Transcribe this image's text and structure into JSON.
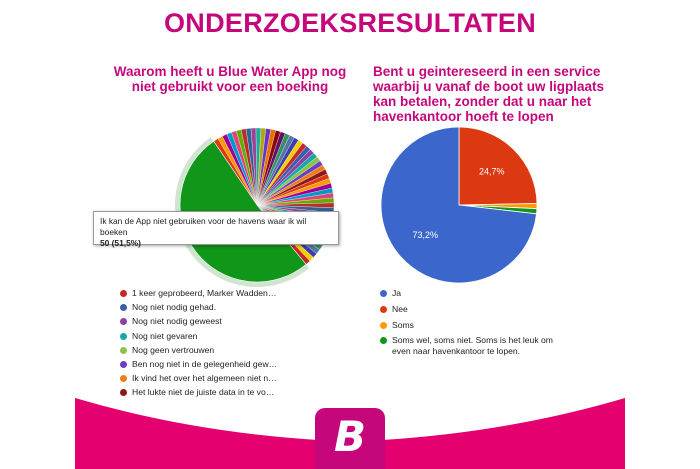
{
  "header": {
    "title": "ONDERZOEKSRESULTATEN"
  },
  "colors": {
    "brand": "#c6077c",
    "footer_pink": "#e4006f"
  },
  "chart_data": [
    {
      "type": "pie",
      "title": "Waarom heeft u Blue Water App nog niet gebruikt voor een boeking",
      "highlight": {
        "label": "Ik kan de App niet gebruiken voor de havens waar ik wil boeken",
        "value_text": "50 (51,5%)",
        "value": 50,
        "percent": 51.5
      },
      "slice_count_other": 47,
      "legend": [
        {
          "label": "1 keer geprobeerd, Marker Wadden…",
          "color": "#c62828"
        },
        {
          "label": "Nog niet nodig gehad.",
          "color": "#3a5fa8"
        },
        {
          "label": "Nog niet nodig geweest",
          "color": "#8e3fa8"
        },
        {
          "label": "Nog niet gevaren",
          "color": "#1aa6a6"
        },
        {
          "label": "Nog geen vertrouwen",
          "color": "#8bc34a"
        },
        {
          "label": "Ben nog niet in de gelegenheid gew…",
          "color": "#6a3fc0"
        },
        {
          "label": "Ik vind het over het algemeen niet n…",
          "color": "#ef7d1a"
        },
        {
          "label": "Het lukte niet de juiste data in te vo…",
          "color": "#8b1a1a"
        }
      ]
    },
    {
      "type": "pie",
      "title": "Bent u geintereseerd in een service waarbij u vanaf de boot uw ligplaats kan betalen, zonder dat u naar het havenkantoor hoeft te lopen",
      "slices": [
        {
          "label": "Ja",
          "percent": 73.2,
          "percent_text": "73,2%",
          "color": "#3b66cc"
        },
        {
          "label": "Nee",
          "percent": 24.7,
          "percent_text": "24,7%",
          "color": "#dc3912"
        },
        {
          "label": "Soms",
          "percent": 1.05,
          "percent_text": "",
          "color": "#ff9900"
        },
        {
          "label": "Soms wel, soms niet. Soms is het leuk om even naar havenkantoor te lopen.",
          "percent": 1.05,
          "percent_text": "",
          "color": "#109618"
        }
      ]
    }
  ]
}
